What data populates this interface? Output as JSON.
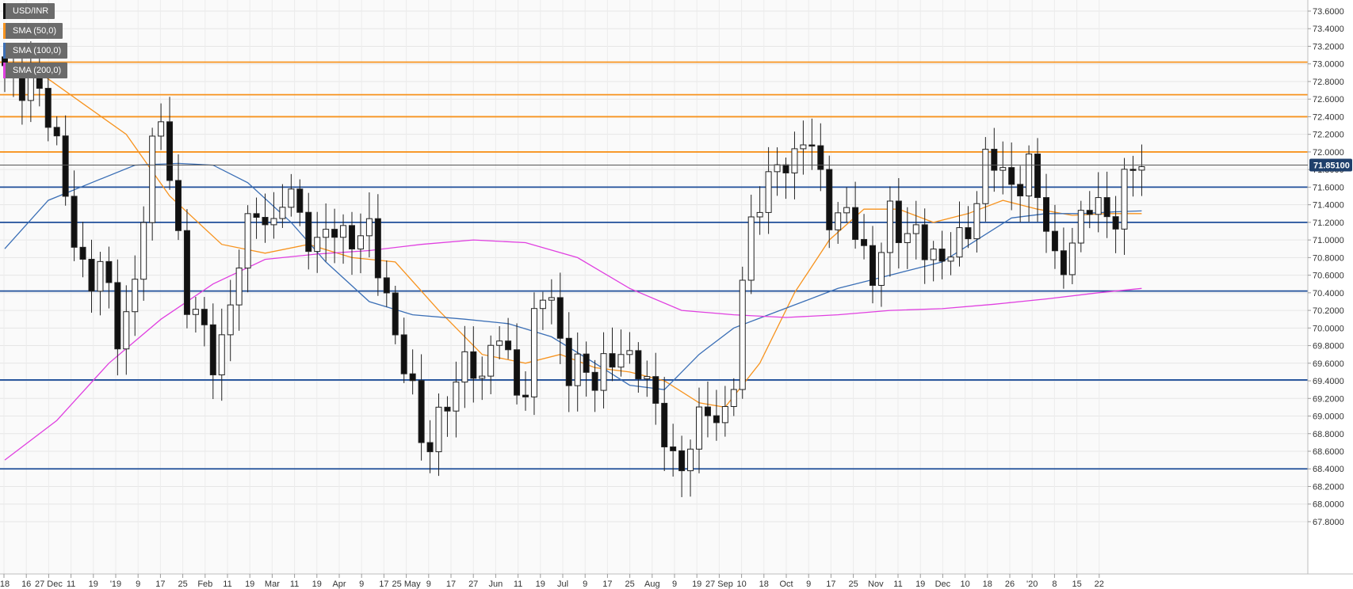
{
  "legend": [
    {
      "label": "USD/INR",
      "color": "#111111"
    },
    {
      "label": "SMA (50,0)",
      "color": "#f7931e"
    },
    {
      "label": "SMA (100,0)",
      "color": "#3b6fb6"
    },
    {
      "label": "SMA (200,0)",
      "color": "#e040e0"
    }
  ],
  "last_price": {
    "label": "71.85100",
    "value": 71.851,
    "color": "#1f3f6b"
  },
  "chart_data": {
    "type": "candlestick",
    "title": "",
    "symbol": "USD/INR",
    "ylim": [
      67.8,
      73.7
    ],
    "yticks": [
      "73.6000",
      "73.4000",
      "73.2000",
      "73.0000",
      "72.8000",
      "72.6000",
      "72.4000",
      "72.2000",
      "72.0000",
      "71.8000",
      "71.6000",
      "71.4000",
      "71.2000",
      "71.0000",
      "70.8000",
      "70.6000",
      "70.4000",
      "70.2000",
      "70.0000",
      "69.8000",
      "69.6000",
      "69.4000",
      "69.2000",
      "69.0000",
      "68.8000",
      "68.6000",
      "68.4000",
      "68.2000",
      "68.0000",
      "67.8000"
    ],
    "xticks": [
      "'18",
      "16",
      "27 Dec",
      "11",
      "19",
      "'19",
      "9",
      "17",
      "25",
      "Feb",
      "11",
      "19",
      "Mar",
      "11",
      "19",
      "Apr",
      "9",
      "17",
      "25 May",
      "9",
      "17",
      "27",
      "Jun",
      "11",
      "19",
      "Jul",
      "9",
      "17",
      "25",
      "Aug",
      "9",
      "19",
      "27 Sep",
      "10",
      "18",
      "Oct",
      "9",
      "17",
      "25",
      "Nov",
      "11",
      "19",
      "Dec",
      "10",
      "18",
      "26",
      "'20",
      "8",
      "15",
      "22"
    ],
    "horizontal_levels": [
      {
        "value": 73.02,
        "color": "#f7931e"
      },
      {
        "value": 72.65,
        "color": "#f7931e"
      },
      {
        "value": 72.4,
        "color": "#f7931e"
      },
      {
        "value": 72.0,
        "color": "#f7931e"
      },
      {
        "value": 71.6,
        "color": "#1f4e99"
      },
      {
        "value": 71.2,
        "color": "#1f4e99"
      },
      {
        "value": 70.42,
        "color": "#1f4e99"
      },
      {
        "value": 69.41,
        "color": "#1f4e99"
      },
      {
        "value": 68.4,
        "color": "#1f4e99"
      }
    ],
    "price_anchors": [
      72.9,
      72.7,
      73.0,
      72.4,
      71.8,
      71.0,
      70.5,
      70.7,
      69.9,
      70.3,
      71.4,
      72.5,
      71.5,
      70.3,
      70.0,
      69.5,
      70.3,
      71.0,
      71.3,
      71.1,
      71.7,
      71.2,
      70.8,
      71.3,
      71.0,
      70.9,
      71.2,
      70.5,
      69.7,
      69.3,
      68.6,
      69.0,
      69.2,
      69.8,
      69.4,
      70.0,
      69.5,
      69.2,
      70.5,
      70.2,
      69.5,
      69.7,
      69.3,
      69.6,
      69.8,
      69.6,
      69.2,
      68.8,
      68.4,
      68.7,
      69.1,
      68.9,
      69.5,
      71.1,
      71.5,
      72.0,
      71.7,
      72.2,
      71.9,
      71.1,
      71.3,
      70.9,
      70.6,
      71.3,
      70.9,
      71.2,
      70.8,
      70.7,
      71.0,
      71.3,
      72.0,
      71.7,
      71.6,
      71.9,
      71.2,
      70.6,
      71.0,
      71.4,
      71.3,
      71.2,
      71.9,
      71.8
    ],
    "sma": [
      {
        "name": "SMA (50,0)",
        "color": "#f7931e",
        "points": [
          [
            0,
            72.95
          ],
          [
            4,
            72.9
          ],
          [
            9,
            72.55
          ],
          [
            14,
            72.2
          ],
          [
            19,
            71.5
          ],
          [
            25,
            70.95
          ],
          [
            30,
            70.85
          ],
          [
            35,
            70.95
          ],
          [
            40,
            70.8
          ],
          [
            45,
            70.75
          ],
          [
            50,
            70.2
          ],
          [
            55,
            69.7
          ],
          [
            60,
            69.6
          ],
          [
            64,
            69.7
          ],
          [
            68,
            69.55
          ],
          [
            72,
            69.5
          ],
          [
            76,
            69.4
          ],
          [
            80,
            69.15
          ],
          [
            83,
            69.1
          ],
          [
            87,
            69.6
          ],
          [
            91,
            70.4
          ],
          [
            95,
            71.0
          ],
          [
            99,
            71.35
          ],
          [
            103,
            71.35
          ],
          [
            107,
            71.2
          ],
          [
            111,
            71.3
          ],
          [
            115,
            71.45
          ],
          [
            119,
            71.35
          ],
          [
            123,
            71.28
          ],
          [
            127,
            71.3
          ],
          [
            131,
            71.3
          ]
        ]
      },
      {
        "name": "SMA (100,0)",
        "color": "#3b6fb6",
        "points": [
          [
            0,
            70.9
          ],
          [
            5,
            71.45
          ],
          [
            10,
            71.65
          ],
          [
            15,
            71.85
          ],
          [
            20,
            71.87
          ],
          [
            24,
            71.85
          ],
          [
            28,
            71.65
          ],
          [
            33,
            71.2
          ],
          [
            37,
            70.75
          ],
          [
            42,
            70.3
          ],
          [
            47,
            70.15
          ],
          [
            53,
            70.1
          ],
          [
            58,
            70.05
          ],
          [
            63,
            69.9
          ],
          [
            68,
            69.6
          ],
          [
            72,
            69.35
          ],
          [
            76,
            69.3
          ],
          [
            80,
            69.7
          ],
          [
            84,
            70.0
          ],
          [
            88,
            70.15
          ],
          [
            92,
            70.3
          ],
          [
            96,
            70.45
          ],
          [
            100,
            70.55
          ],
          [
            104,
            70.65
          ],
          [
            108,
            70.75
          ],
          [
            112,
            71.0
          ],
          [
            116,
            71.25
          ],
          [
            120,
            71.3
          ],
          [
            124,
            71.3
          ],
          [
            128,
            71.32
          ],
          [
            131,
            71.33
          ]
        ]
      },
      {
        "name": "SMA (200,0)",
        "color": "#e040e0",
        "points": [
          [
            0,
            68.5
          ],
          [
            6,
            68.95
          ],
          [
            12,
            69.6
          ],
          [
            18,
            70.1
          ],
          [
            24,
            70.5
          ],
          [
            30,
            70.78
          ],
          [
            36,
            70.84
          ],
          [
            42,
            70.88
          ],
          [
            48,
            70.95
          ],
          [
            54,
            71.0
          ],
          [
            60,
            70.97
          ],
          [
            66,
            70.8
          ],
          [
            72,
            70.45
          ],
          [
            78,
            70.2
          ],
          [
            84,
            70.15
          ],
          [
            90,
            70.12
          ],
          [
            96,
            70.15
          ],
          [
            102,
            70.2
          ],
          [
            108,
            70.22
          ],
          [
            114,
            70.27
          ],
          [
            120,
            70.33
          ],
          [
            126,
            70.4
          ],
          [
            131,
            70.45
          ]
        ]
      }
    ]
  }
}
